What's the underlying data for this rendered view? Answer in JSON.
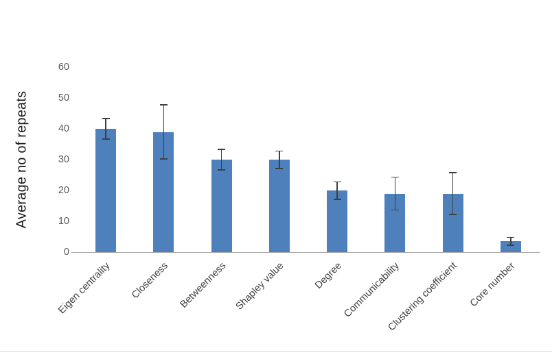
{
  "chart_data": {
    "type": "bar",
    "title": "",
    "ylabel": "Average no of repeats",
    "xlabel": "",
    "ylim": [
      0,
      60
    ],
    "yticks": [
      0,
      10,
      20,
      30,
      40,
      50,
      60
    ],
    "categories": [
      "Eigen centrality",
      "Closeness",
      "Betweenness",
      "Shapley value",
      "Degree",
      "Communicability",
      "Clustering coefficient",
      "Core number"
    ],
    "values": [
      40,
      39,
      30,
      30,
      20,
      19,
      19,
      3.5
    ],
    "errors": [
      3.5,
      9,
      3.5,
      3,
      3,
      5.5,
      7,
      1.5
    ],
    "bar_color": "#4e80bc",
    "error_color": "#3f3f3f",
    "axis_color": "#a8a8a8",
    "grid": false,
    "legend": "none"
  }
}
